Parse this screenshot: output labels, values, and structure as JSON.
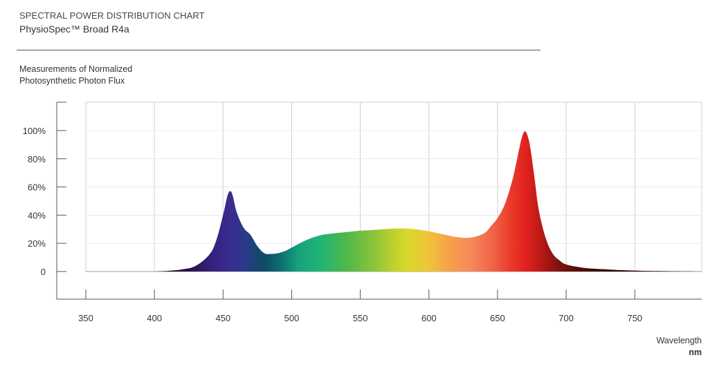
{
  "header": {
    "title": "SPECTRAL POWER DISTRIBUTION CHART",
    "subtitle": "PhysioSpec™ Broad R4a"
  },
  "measurement_label": {
    "line1": "Measurements of Normalized",
    "line2": "Photosynthetic Photon Flux"
  },
  "axis": {
    "xlabel": "Wavelength",
    "xunit": "nm"
  },
  "chart_data": {
    "type": "area",
    "title": "SPECTRAL POWER DISTRIBUTION CHART",
    "subtitle": "PhysioSpec™ Broad R4a",
    "ylabel": "Measurements of Normalized Photosynthetic Photon Flux",
    "xlabel": "Wavelength",
    "xunit": "nm",
    "xlim": [
      350,
      800
    ],
    "ylim": [
      -20,
      120
    ],
    "x_ticks": [
      350,
      400,
      450,
      500,
      550,
      600,
      650,
      700,
      750
    ],
    "y_ticks": [
      0,
      20,
      40,
      60,
      80,
      100
    ],
    "y_tick_labels": [
      "0",
      "20%",
      "40%",
      "60%",
      "80%",
      "100%"
    ],
    "grid": true,
    "fill": "visible-spectrum gradient",
    "series": [
      {
        "x": [
          400,
          410,
          420,
          430,
          440,
          445,
          450,
          453,
          455,
          457,
          460,
          465,
          470,
          475,
          480,
          485,
          490,
          495,
          500,
          510,
          520,
          530,
          540,
          550,
          560,
          570,
          580,
          590,
          600,
          610,
          620,
          630,
          640,
          645,
          650,
          655,
          660,
          663,
          666,
          668,
          670,
          672,
          674,
          677,
          680,
          685,
          690,
          695,
          700,
          710,
          720,
          730,
          740,
          750,
          760,
          770,
          780,
          790,
          795
        ],
        "y": [
          0,
          0.5,
          1.5,
          4,
          12,
          22,
          40,
          53,
          57,
          54,
          42,
          31,
          26,
          18,
          13,
          12.5,
          13,
          14.5,
          17,
          22,
          25.5,
          27,
          28,
          29,
          29.5,
          30.2,
          30.5,
          30,
          28.5,
          26.5,
          24.5,
          24,
          27,
          32,
          38,
          47,
          62,
          74,
          88,
          96,
          99.5,
          96,
          87,
          66,
          44,
          24,
          13,
          8,
          5,
          3,
          2,
          1.5,
          1,
          0.7,
          0.4,
          0.3,
          0.2,
          0.1,
          0
        ]
      }
    ],
    "gradient_stops": [
      {
        "wavelength": 400,
        "color": "#12051c"
      },
      {
        "wavelength": 425,
        "color": "#2a0f43"
      },
      {
        "wavelength": 440,
        "color": "#33207a"
      },
      {
        "wavelength": 455,
        "color": "#3a2c90"
      },
      {
        "wavelength": 468,
        "color": "#273c86"
      },
      {
        "wavelength": 480,
        "color": "#0e4a64"
      },
      {
        "wavelength": 492,
        "color": "#0c6f73"
      },
      {
        "wavelength": 505,
        "color": "#17a37a"
      },
      {
        "wavelength": 520,
        "color": "#1fb37a"
      },
      {
        "wavelength": 540,
        "color": "#4fb84a"
      },
      {
        "wavelength": 560,
        "color": "#8bc43a"
      },
      {
        "wavelength": 575,
        "color": "#c2d12c"
      },
      {
        "wavelength": 585,
        "color": "#d9d82a"
      },
      {
        "wavelength": 600,
        "color": "#f0c33a"
      },
      {
        "wavelength": 615,
        "color": "#f6a04a"
      },
      {
        "wavelength": 630,
        "color": "#f58a5a"
      },
      {
        "wavelength": 645,
        "color": "#f0684a"
      },
      {
        "wavelength": 660,
        "color": "#ea3a2a"
      },
      {
        "wavelength": 670,
        "color": "#e2231f"
      },
      {
        "wavelength": 680,
        "color": "#c01a17"
      },
      {
        "wavelength": 695,
        "color": "#7a120f"
      },
      {
        "wavelength": 720,
        "color": "#3c0a06"
      },
      {
        "wavelength": 800,
        "color": "#200502"
      }
    ]
  }
}
